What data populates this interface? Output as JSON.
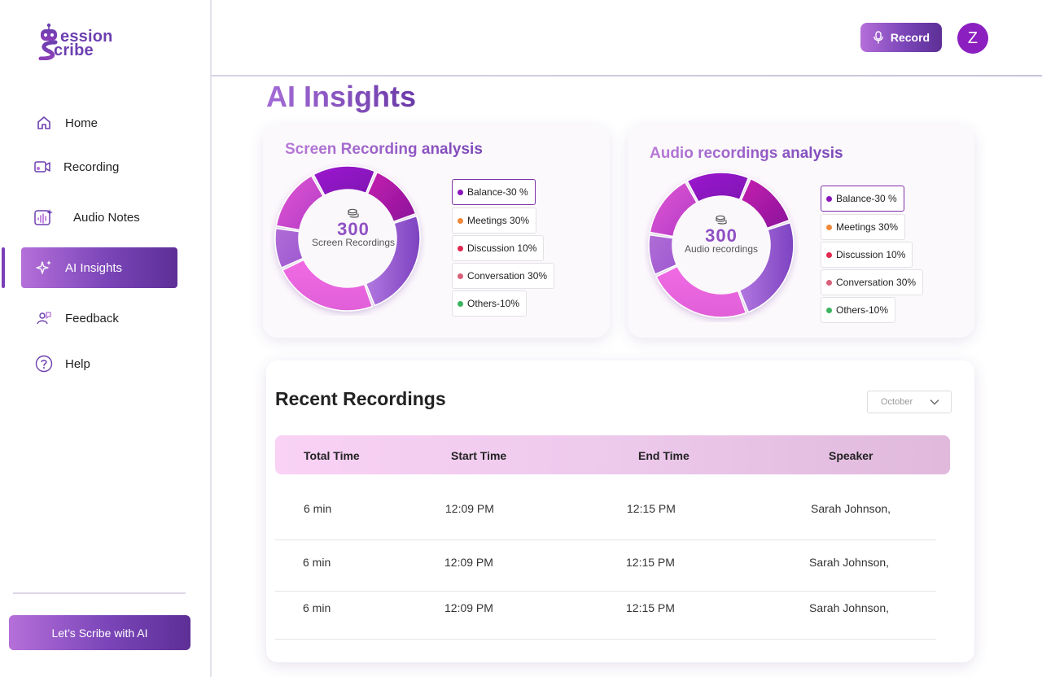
{
  "brand": {
    "line1": "ession",
    "line2": "cribe",
    "colors": {
      "primary": "#7a45b8",
      "accent": "#8c1fc0"
    }
  },
  "sidebar": {
    "items": [
      {
        "label": "Home",
        "icon": "home-icon",
        "active": false
      },
      {
        "label": "Recording",
        "icon": "video-recording-icon",
        "active": false
      },
      {
        "label": "Audio Notes",
        "icon": "audio-notes-icon",
        "active": false
      },
      {
        "label": "AI Insights",
        "icon": "sparkle-icon",
        "active": true
      },
      {
        "label": "Feedback",
        "icon": "feedback-icon",
        "active": false
      },
      {
        "label": "Help",
        "icon": "help-icon",
        "active": false
      }
    ],
    "cta_label": "Let’s Scribe with AI"
  },
  "header": {
    "record_label": "Record",
    "record_icon": "microphone-icon",
    "avatar_initial": "Z"
  },
  "page": {
    "title": "AI Insights"
  },
  "screen_card": {
    "title": "Screen Recording analysis",
    "center_value": "300",
    "center_label": "Screen Recordings",
    "legend": [
      {
        "label": "Balance-30 %",
        "color": "#8a16b8",
        "selected": true
      },
      {
        "label": "Meetings 30%",
        "color": "#f0883a",
        "selected": false
      },
      {
        "label": "Discussion 10%",
        "color": "#e0284f",
        "selected": false
      },
      {
        "label": "Conversation 30%",
        "color": "#d9607a",
        "selected": false
      },
      {
        "label": "Others-10%",
        "color": "#3cb460",
        "selected": false
      }
    ]
  },
  "audio_card": {
    "title": "Audio recordings analysis",
    "center_value": "300",
    "center_label": "Audio recordings",
    "legend": [
      {
        "label": "Balance-30 %",
        "color": "#8a16b8",
        "selected": true
      },
      {
        "label": "Meetings 30%",
        "color": "#f0883a",
        "selected": false
      },
      {
        "label": "Discussion 10%",
        "color": "#e0284f",
        "selected": false
      },
      {
        "label": "Conversation 30%",
        "color": "#d9607a",
        "selected": false
      },
      {
        "label": "Others-10%",
        "color": "#3cb460",
        "selected": false
      }
    ]
  },
  "recent": {
    "title": "Recent Recordings",
    "month": "October",
    "columns": [
      "Total Time",
      "Start Time",
      "End Time",
      "Speaker"
    ],
    "rows": [
      [
        "6 min",
        "12:09 PM",
        "12:15 PM",
        "Sarah Johnson,"
      ],
      [
        "6 min",
        "12:09 PM",
        "12:15 PM",
        "Sarah Johnson,"
      ],
      [
        "6 min",
        "12:09 PM",
        "12:15 PM",
        "Sarah Johnson,"
      ]
    ]
  }
}
